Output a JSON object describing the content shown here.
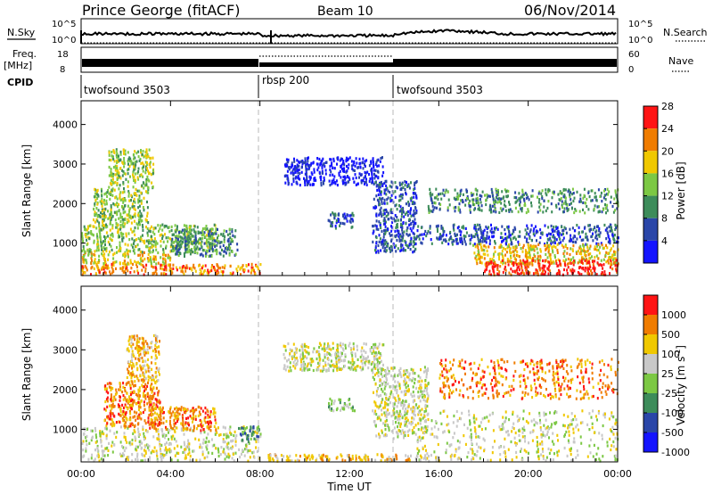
{
  "header": {
    "station": "Prince George (fitACF)",
    "beam": "Beam 10",
    "date": "06/Nov/2014"
  },
  "top_panel": {
    "nsky_label": "N.Sky",
    "nsearch_label": "N.Search",
    "freq_label": "Freq.",
    "freq_unit": "[MHz]",
    "nave_label": "Nave",
    "cpid_label": "CPID",
    "count_ticks_left": [
      "10^5",
      "10^0"
    ],
    "count_ticks_right": [
      "10^5",
      "10^0"
    ],
    "freq_ticks": [
      "18",
      "8"
    ],
    "nave_ticks": [
      "60",
      "0"
    ]
  },
  "cpid_segments": [
    {
      "label": "twofsound 3503",
      "start_h": 0,
      "end_h": 7.9
    },
    {
      "label": "rbsp 200",
      "start_h": 7.9,
      "end_h": 14.0
    },
    {
      "label": "twofsound 3503",
      "start_h": 14.0,
      "end_h": 24
    }
  ],
  "chart_data": [
    {
      "type": "heatmap",
      "name": "power",
      "xlabel": "",
      "ylabel": "Slant Range [km]",
      "xlim": [
        0,
        24
      ],
      "ylim": [
        180,
        4600
      ],
      "yticks": [
        "1000",
        "2000",
        "3000",
        "4000"
      ],
      "ytick_values": [
        1000,
        2000,
        3000,
        4000
      ],
      "colorbar": {
        "label": "Power [dB]",
        "ticks": [
          "4",
          "8",
          "12",
          "16",
          "20",
          "24",
          "28"
        ],
        "colors": [
          "#1414ff",
          "#2a46a8",
          "#3d8c5a",
          "#7cc844",
          "#f0c800",
          "#f07c00",
          "#ff1414"
        ]
      },
      "regions": [
        {
          "t0": 0.0,
          "t1": 8.0,
          "r0": 230,
          "r1": 500,
          "level": 5
        },
        {
          "t0": 0.0,
          "t1": 4.0,
          "r0": 500,
          "r1": 800,
          "level": 4
        },
        {
          "t0": 0.0,
          "t1": 6.0,
          "r0": 800,
          "r1": 1500,
          "level": 3
        },
        {
          "t0": 0.5,
          "t1": 3.0,
          "r0": 1500,
          "r1": 2400,
          "level": 3
        },
        {
          "t0": 1.2,
          "t1": 3.2,
          "r0": 2400,
          "r1": 3400,
          "level": 3
        },
        {
          "t0": 4.0,
          "t1": 7.0,
          "r0": 700,
          "r1": 1400,
          "level": 2
        },
        {
          "t0": 9.0,
          "t1": 13.5,
          "r0": 2500,
          "r1": 3200,
          "level": 0
        },
        {
          "t0": 11.0,
          "t1": 12.2,
          "r0": 1400,
          "r1": 1800,
          "level": 1
        },
        {
          "t0": 13.0,
          "t1": 15.0,
          "r0": 800,
          "r1": 2600,
          "level": 1
        },
        {
          "t0": 15.0,
          "t1": 24.0,
          "r0": 1000,
          "r1": 1500,
          "level": 1
        },
        {
          "t0": 15.5,
          "t1": 24.0,
          "r0": 1800,
          "r1": 2400,
          "level": 2
        },
        {
          "t0": 17.5,
          "t1": 24.0,
          "r0": 500,
          "r1": 1000,
          "level": 4
        },
        {
          "t0": 18.0,
          "t1": 24.0,
          "r0": 230,
          "r1": 600,
          "level": 6
        }
      ]
    },
    {
      "type": "heatmap",
      "name": "velocity",
      "xlabel": "Time UT",
      "ylabel": "Slant Range [km]",
      "xlim": [
        0,
        24
      ],
      "ylim": [
        180,
        4600
      ],
      "xticks": [
        "00:00",
        "04:00",
        "08:00",
        "12:00",
        "16:00",
        "20:00",
        "00:00"
      ],
      "xtick_values": [
        0,
        4,
        8,
        12,
        16,
        20,
        24
      ],
      "yticks": [
        "1000",
        "2000",
        "3000",
        "4000"
      ],
      "ytick_values": [
        1000,
        2000,
        3000,
        4000
      ],
      "colorbar": {
        "label": "Velocity [m s",
        "label_sup": "-1",
        "label_end": "]",
        "ticks": [
          "1000",
          "500",
          "100",
          "25",
          "-25",
          "-100",
          "-500",
          "-1000"
        ],
        "colors": [
          "#1414ff",
          "#2a46a8",
          "#3d8c5a",
          "#7cc844",
          "#c8c8c8",
          "#f0c800",
          "#f07c00",
          "#ff1414"
        ]
      },
      "regions": [
        {
          "t0": 0.0,
          "t1": 8.0,
          "r0": 230,
          "r1": 1100,
          "level": 4
        },
        {
          "t0": 1.0,
          "t1": 3.5,
          "r0": 1100,
          "r1": 2200,
          "level": 6
        },
        {
          "t0": 2.0,
          "t1": 3.5,
          "r0": 2200,
          "r1": 3400,
          "level": 5
        },
        {
          "t0": 3.0,
          "t1": 6.0,
          "r0": 1000,
          "r1": 1600,
          "level": 6
        },
        {
          "t0": 7.0,
          "t1": 8.0,
          "r0": 700,
          "r1": 1100,
          "level": 2
        },
        {
          "t0": 9.0,
          "t1": 13.5,
          "r0": 2500,
          "r1": 3200,
          "level": 4
        },
        {
          "t0": 11.0,
          "t1": 12.2,
          "r0": 1500,
          "r1": 1800,
          "level": 3
        },
        {
          "t0": 13.0,
          "t1": 15.5,
          "r0": 800,
          "r1": 2600,
          "level": 4
        },
        {
          "t0": 15.0,
          "t1": 24.0,
          "r0": 230,
          "r1": 1500,
          "level": 4
        },
        {
          "t0": 16.0,
          "t1": 24.0,
          "r0": 1800,
          "r1": 2800,
          "level": 6
        },
        {
          "t0": 8.0,
          "t1": 16.0,
          "r0": 230,
          "r1": 400,
          "level": 5
        }
      ]
    }
  ]
}
